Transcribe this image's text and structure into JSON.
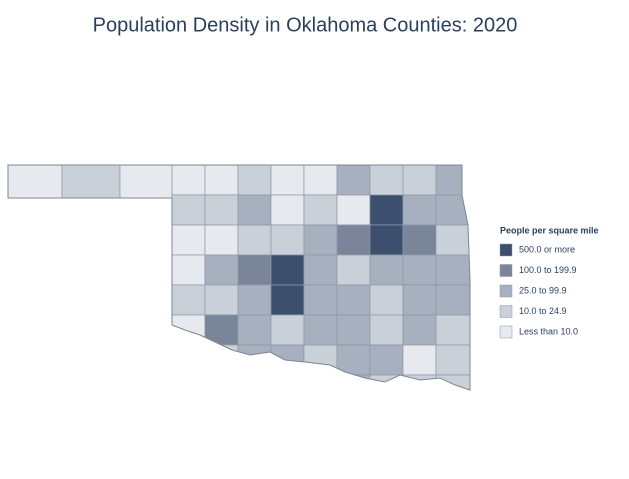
{
  "title": "Population Density in Oklahoma Counties: 2020",
  "legend": {
    "title": "People per square mile",
    "items": [
      {
        "label": "500.0 or more",
        "color": "#3d4f6e"
      },
      {
        "label": "100.0 to 199.9",
        "color": "#7a8599"
      },
      {
        "label": "25.0 to 99.9",
        "color": "#a6b0be"
      },
      {
        "label": "10.0 to 24.9",
        "color": "#c9d0d8"
      },
      {
        "label": "Less than 10.0",
        "color": "#e6e9ee"
      }
    ]
  }
}
